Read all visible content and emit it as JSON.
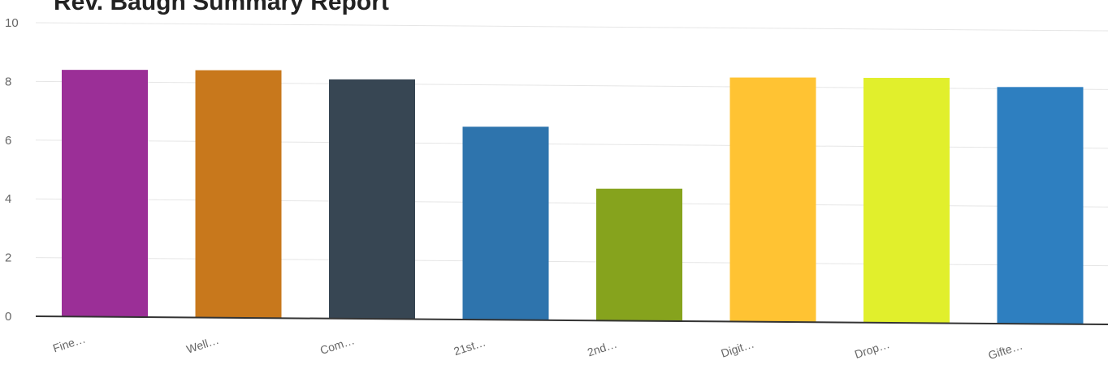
{
  "chart_data": {
    "type": "bar",
    "title": "Rev. Baugh Summary Report",
    "categories": [
      "Fine…",
      "Well…",
      "Com…",
      "21st…",
      "2nd…",
      "Digit…",
      "Drop…",
      "Gifte…"
    ],
    "values": [
      8.4,
      8.4,
      8.1,
      6.5,
      4.4,
      8.2,
      8.2,
      7.9
    ],
    "colors": [
      "#9b2f97",
      "#c8781c",
      "#374653",
      "#2e74ad",
      "#86a31d",
      "#ffc333",
      "#e1ef2c",
      "#2e7fc0"
    ],
    "ylim": [
      0,
      10
    ],
    "yticks": [
      0,
      2,
      4,
      6,
      8,
      10
    ],
    "grid": true,
    "xlabel": "",
    "ylabel": ""
  }
}
